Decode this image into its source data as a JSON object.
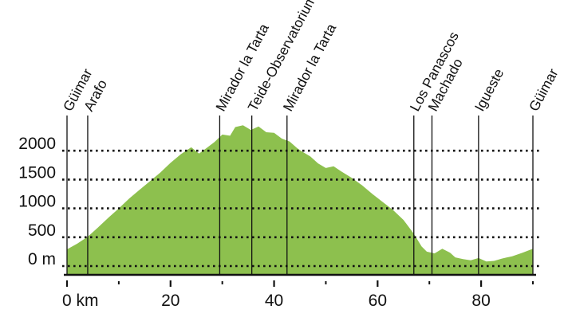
{
  "chart_data": {
    "type": "area",
    "title": "",
    "xlabel": "",
    "ylabel": "",
    "xlim": [
      0,
      90
    ],
    "ylim": [
      0,
      2300
    ],
    "colors": {
      "fill": "#8dc04e",
      "baseline": "#111111",
      "gridline": "#111111"
    },
    "grid": "horizontal dotted",
    "y_ticks": [
      {
        "value": 0,
        "label": "0 m"
      },
      {
        "value": 500,
        "label": "500"
      },
      {
        "value": 1000,
        "label": "1000"
      },
      {
        "value": 1500,
        "label": "1500"
      },
      {
        "value": 2000,
        "label": "2000"
      }
    ],
    "x_ticks": [
      {
        "value": 0,
        "label": "0 km"
      },
      {
        "value": 20,
        "label": "20"
      },
      {
        "value": 40,
        "label": "40"
      },
      {
        "value": 60,
        "label": "60"
      },
      {
        "value": 80,
        "label": "80"
      }
    ],
    "x_minor_ticks": [
      10,
      30,
      50,
      70,
      90
    ],
    "waypoints": [
      {
        "km": 0,
        "name": "Güimar"
      },
      {
        "km": 4,
        "name": "Arafo"
      },
      {
        "km": 29.5,
        "name": "Mirador la Tarta"
      },
      {
        "km": 35.7,
        "name": "Teide-Observatorium"
      },
      {
        "km": 42.5,
        "name": "Mirador la Tarta"
      },
      {
        "km": 67,
        "name": "Los Panascos"
      },
      {
        "km": 70.5,
        "name": "Machado"
      },
      {
        "km": 79.5,
        "name": "Igueste"
      },
      {
        "km": 90,
        "name": "Güimar"
      }
    ],
    "series": [
      {
        "x": [
          0,
          2,
          4,
          6,
          8,
          10,
          12,
          14,
          16,
          18,
          20,
          22,
          24,
          25.5,
          27,
          28.5,
          30,
          31.5,
          32.5,
          34,
          35.5,
          37,
          38.5,
          40,
          41.5,
          43,
          44.5,
          45.5,
          47,
          48.5,
          50,
          51.5,
          53,
          55,
          57,
          59,
          61,
          63,
          65,
          67,
          68.5,
          69.5,
          71,
          72.5,
          74,
          75,
          76.5,
          78,
          79.5,
          81,
          82.5,
          84,
          86,
          88,
          90
        ],
        "y": [
          290,
          390,
          510,
          670,
          840,
          1000,
          1170,
          1320,
          1470,
          1620,
          1790,
          1940,
          2060,
          1950,
          2050,
          2150,
          2280,
          2260,
          2410,
          2440,
          2360,
          2420,
          2320,
          2310,
          2210,
          2160,
          2040,
          1980,
          1900,
          1780,
          1700,
          1730,
          1640,
          1530,
          1400,
          1250,
          1110,
          970,
          800,
          560,
          340,
          250,
          220,
          300,
          230,
          150,
          120,
          100,
          140,
          80,
          90,
          130,
          170,
          230,
          300
        ]
      }
    ]
  }
}
